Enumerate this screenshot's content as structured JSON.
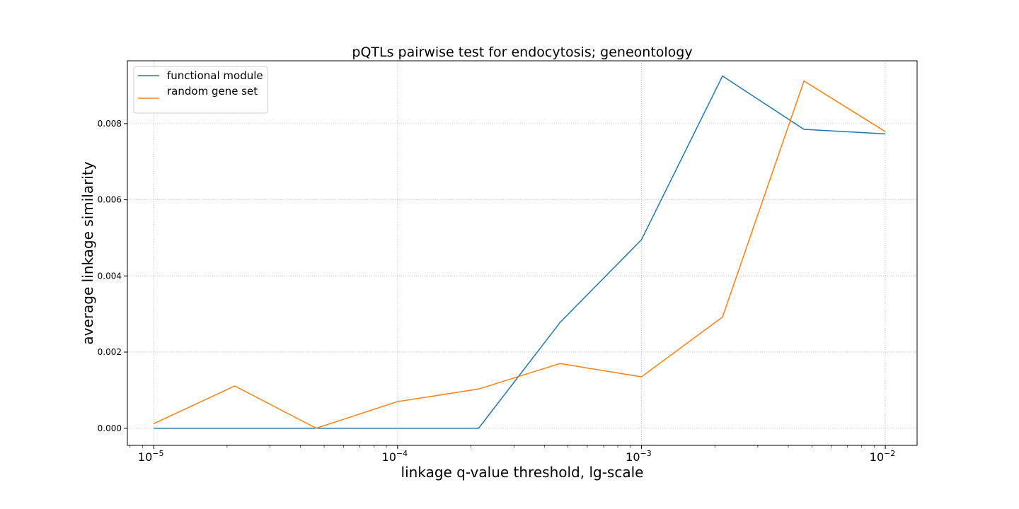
{
  "chart_data": {
    "type": "line",
    "title": "pQTLs pairwise test for endocytosis; geneontology",
    "xlabel": "linkage q-value threshold, lg-scale",
    "ylabel": "average linkage similarity",
    "xscale": "log",
    "xlim": [
      7.8e-06,
      0.0135
    ],
    "ylim": [
      -0.00045,
      0.00965
    ],
    "grid": true,
    "legend_position": "upper-left",
    "x": [
      1e-05,
      2.15e-05,
      4.64e-05,
      0.0001,
      0.000215,
      0.000464,
      0.001,
      0.00215,
      0.00464,
      0.01
    ],
    "xticks": [
      {
        "value": 1e-05,
        "base": "10",
        "exp": "−5"
      },
      {
        "value": 0.0001,
        "base": "10",
        "exp": "−4"
      },
      {
        "value": 0.001,
        "base": "10",
        "exp": "−3"
      },
      {
        "value": 0.01,
        "base": "10",
        "exp": "−2"
      }
    ],
    "yticks": [
      {
        "value": 0.0,
        "label": "0.000"
      },
      {
        "value": 0.002,
        "label": "0.002"
      },
      {
        "value": 0.004,
        "label": "0.004"
      },
      {
        "value": 0.006,
        "label": "0.006"
      },
      {
        "value": 0.008,
        "label": "0.008"
      }
    ],
    "series": [
      {
        "name": "functional module",
        "color": "#1f77b4",
        "values": [
          0.0,
          0.0,
          0.0,
          0.0,
          0.0,
          0.00278,
          0.00495,
          0.00925,
          0.00785,
          0.00773
        ]
      },
      {
        "name": "random gene set",
        "color": "#ff7f0e",
        "values": [
          0.00012,
          0.00111,
          0.0,
          0.0007,
          0.00103,
          0.0017,
          0.00135,
          0.00292,
          0.00912,
          0.00779
        ]
      }
    ]
  }
}
